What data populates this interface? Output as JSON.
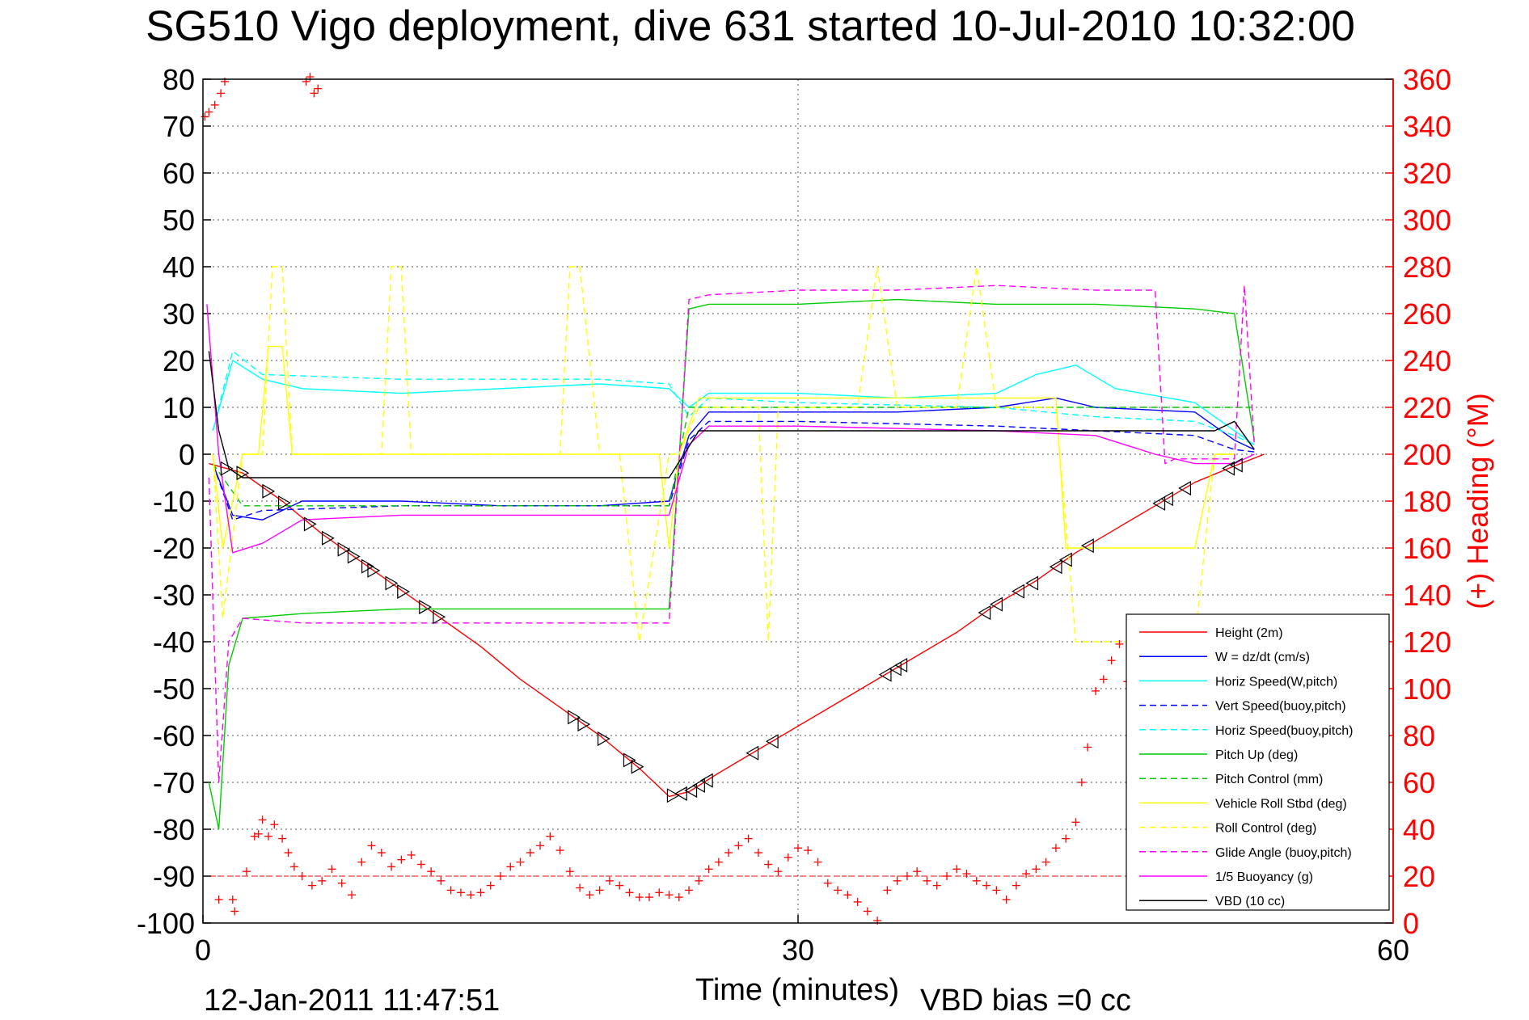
{
  "chart_data": {
    "type": "line",
    "title": "SG510 Vigo deployment, dive 631 started 10-Jul-2010 10:32:00",
    "xlabel": "Time (minutes)",
    "ylabel": "",
    "y2label": "(+) Heading (°M)",
    "xlim": [
      0,
      60
    ],
    "ylim": [
      -100,
      80
    ],
    "y2lim": [
      0,
      360
    ],
    "xticks": [
      0,
      30,
      60
    ],
    "yticks": [
      80,
      70,
      60,
      50,
      40,
      30,
      20,
      10,
      0,
      -10,
      -20,
      -30,
      -40,
      -50,
      -60,
      -70,
      -80,
      -90,
      -100
    ],
    "y2ticks": [
      360,
      340,
      320,
      300,
      280,
      260,
      240,
      220,
      200,
      180,
      160,
      140,
      120,
      100,
      80,
      60,
      40,
      20,
      0
    ],
    "grid": true,
    "legend_position": "bottom-right",
    "footer_left": "12-Jan-2011 11:47:51",
    "footer_right": "VBD bias =0 cc",
    "series": [
      {
        "name": "Height (2m)",
        "color": "#ff0000",
        "dash": "solid",
        "x": [
          0.3,
          2,
          4,
          6,
          8,
          10,
          12,
          14,
          16,
          18,
          20,
          22,
          23.5,
          24.5,
          26,
          28,
          30,
          32,
          34,
          36,
          38,
          40,
          42,
          44,
          46,
          48,
          50,
          52,
          53.5
        ],
        "y": [
          -2,
          -4,
          -10,
          -17,
          -23,
          -29,
          -35,
          -41,
          -48,
          -54,
          -60,
          -67,
          -73,
          -72,
          -68,
          -63,
          -58,
          -53,
          -48,
          -43,
          -38,
          -32,
          -27,
          -21,
          -16,
          -11,
          -6,
          -2.5,
          0
        ]
      },
      {
        "name": "W = dz/dt (cm/s)",
        "color": "#0000ff",
        "dash": "solid",
        "x": [
          0.5,
          1.5,
          3,
          5,
          10,
          15,
          20,
          23.5,
          24.5,
          25.5,
          30,
          35,
          40,
          43,
          45,
          50,
          52,
          53
        ],
        "y": [
          -2,
          -13,
          -14,
          -10,
          -10,
          -11,
          -11,
          -10,
          4,
          9,
          9,
          9,
          10,
          12,
          10,
          9,
          3,
          1
        ]
      },
      {
        "name": "Horiz Speed(W,pitch)",
        "color": "#00ffff",
        "dash": "solid",
        "x": [
          0.5,
          1.5,
          3,
          5,
          10,
          15,
          20,
          23.5,
          24.5,
          25.5,
          30,
          35,
          40,
          42,
          44,
          46,
          50,
          52,
          53
        ],
        "y": [
          5,
          20,
          16,
          14,
          13,
          14,
          15,
          14,
          10,
          13,
          13,
          12,
          13,
          17,
          19,
          14,
          11,
          5,
          2
        ]
      },
      {
        "name": "Vert Speed(buoy,pitch)",
        "color": "#0000ff",
        "dash": "dashed",
        "x": [
          0.5,
          1.5,
          3,
          10,
          20,
          23.5,
          24.5,
          25.5,
          30,
          40,
          45,
          50,
          52,
          53
        ],
        "y": [
          -2,
          -14,
          -12,
          -11,
          -11,
          -11,
          3,
          7,
          7,
          6,
          5,
          4,
          1,
          0.5
        ]
      },
      {
        "name": "Horiz Speed(buoy,pitch)",
        "color": "#00ffff",
        "dash": "dashed",
        "x": [
          0.5,
          1.5,
          3,
          10,
          20,
          23.5,
          24.5,
          25.5,
          30,
          40,
          45,
          50,
          52,
          53
        ],
        "y": [
          5,
          22,
          17,
          16,
          16,
          15,
          8,
          12,
          11,
          10,
          8,
          7,
          4,
          2
        ]
      },
      {
        "name": "Pitch Up (deg)",
        "color": "#00cc00",
        "dash": "solid",
        "x": [
          0.3,
          0.8,
          1.3,
          2,
          5,
          10,
          15,
          20,
          23.5,
          24.5,
          25.5,
          30,
          35,
          40,
          45,
          50,
          52,
          53
        ],
        "y": [
          -70,
          -80,
          -45,
          -35,
          -34,
          -33,
          -33,
          -33,
          -33,
          31,
          32,
          32,
          33,
          32,
          32,
          31,
          30,
          3
        ]
      },
      {
        "name": "Pitch Control (mm)",
        "color": "#00cc00",
        "dash": "dashed",
        "x": [
          0.5,
          2,
          10,
          23.5,
          24.5,
          30,
          40,
          50,
          53
        ],
        "y": [
          -2,
          -11,
          -11,
          -11,
          10,
          10,
          10,
          10,
          10
        ]
      },
      {
        "name": "Vehicle Roll Stbd (deg)",
        "color": "#ffff00",
        "dash": "solid",
        "x": [
          0.5,
          1,
          2,
          2.8,
          3.3,
          4,
          4.5,
          5,
          10,
          10.5,
          12,
          12.5,
          20,
          23,
          23.5,
          24,
          25,
          30,
          34,
          35,
          36,
          39,
          40,
          41,
          42,
          43,
          43.5,
          44,
          45,
          46,
          47,
          48,
          49,
          50,
          51,
          52
        ],
        "y": [
          0,
          -20,
          0,
          0,
          23,
          23,
          0,
          0,
          0,
          0,
          0,
          0,
          0,
          0,
          -20,
          0,
          12,
          12,
          12,
          12,
          12,
          12,
          12,
          12,
          12,
          12,
          -20,
          -20,
          -20,
          -20,
          -20,
          -20,
          -20,
          -20,
          0,
          0
        ]
      },
      {
        "name": "Roll Control (deg)",
        "color": "#ffff00",
        "dash": "dashed",
        "x": [
          0.5,
          1,
          2,
          3,
          3.5,
          4,
          4.5,
          5,
          9,
          9.5,
          10,
          10.5,
          18,
          18.5,
          19,
          20,
          21,
          22,
          23.5,
          24,
          25,
          28,
          28.5,
          29,
          33,
          34,
          35,
          38,
          39,
          40,
          41,
          43,
          44,
          45,
          48,
          49,
          50,
          51,
          52
        ],
        "y": [
          0,
          -35,
          0,
          0,
          40,
          40,
          0,
          0,
          0,
          40,
          40,
          0,
          0,
          40,
          40,
          0,
          0,
          -40,
          0,
          0,
          10,
          10,
          -40,
          10,
          10,
          40,
          10,
          10,
          40,
          10,
          10,
          10,
          -40,
          -40,
          -40,
          -40,
          -40,
          0,
          0
        ]
      },
      {
        "name": "Glide Angle (buoy,pitch)",
        "color": "#ff00ff",
        "dash": "dashed",
        "x": [
          0.3,
          0.8,
          1.3,
          2,
          5,
          10,
          15,
          20,
          23.5,
          24.5,
          25.5,
          30,
          35,
          40,
          45,
          48,
          48.5,
          49,
          52,
          52.5,
          53
        ],
        "y": [
          -5,
          -70,
          -40,
          -35,
          -36,
          -36,
          -36,
          -36,
          -36,
          33,
          34,
          35,
          35,
          36,
          35,
          35,
          -2,
          -1,
          -1,
          36,
          2
        ]
      },
      {
        "name": "1/5 Buoyancy (g)",
        "color": "#ff00ff",
        "dash": "solid",
        "x": [
          0.2,
          0.8,
          1.5,
          3,
          5,
          10,
          15,
          20,
          23.5,
          24.5,
          25.5,
          30,
          40,
          45,
          48,
          50,
          52,
          53
        ],
        "y": [
          32,
          0,
          -21,
          -19,
          -14,
          -13,
          -13,
          -13,
          -13,
          2,
          6,
          6,
          5,
          4,
          0,
          -2,
          -2,
          0
        ]
      },
      {
        "name": "VBD (10 cc)",
        "color": "#000000",
        "dash": "solid",
        "x": [
          0.3,
          0.8,
          1.3,
          2,
          10,
          20,
          23.5,
          25,
          30,
          40,
          48,
          51,
          52,
          53
        ],
        "y": [
          22,
          5,
          -3,
          -5,
          -5,
          -5,
          -5,
          5,
          5,
          5,
          5,
          5,
          7,
          1
        ]
      }
    ],
    "heading_series": {
      "name": "(+) Heading (°M)",
      "color": "#ff0000",
      "marker": "+",
      "axis": "right",
      "x": [
        0.1,
        0.3,
        0.6,
        0.9,
        1.1,
        1.6,
        5.2,
        5.4,
        5.6,
        5.8,
        0.8,
        1.5,
        2.2,
        2.6,
        2.8,
        3.0,
        3.3,
        3.6,
        4.0,
        4.3,
        4.6,
        5.0,
        5.5,
        6.0,
        6.5,
        7.0,
        7.5,
        8.0,
        8.5,
        9.0,
        9.5,
        10.0,
        10.5,
        11.0,
        11.5,
        12.0,
        12.5,
        13.0,
        13.5,
        14.0,
        14.5,
        15.0,
        15.5,
        16.0,
        16.5,
        17.0,
        17.5,
        18.0,
        18.5,
        19.0,
        19.5,
        20.0,
        20.5,
        21.0,
        21.5,
        22.0,
        22.5,
        23.0,
        23.5,
        24.0,
        24.5,
        25.0,
        25.5,
        26.0,
        26.5,
        27.0,
        27.5,
        28.0,
        28.5,
        29.0,
        29.5,
        30.0,
        30.5,
        31.0,
        31.5,
        32.0,
        32.5,
        33.0,
        33.5,
        34.0,
        34.5,
        35.0,
        35.5,
        36.0,
        36.5,
        37.0,
        37.5,
        38.0,
        38.5,
        39.0,
        39.5,
        40.0,
        40.5,
        41.0,
        41.5,
        42.0,
        42.5,
        43.0,
        43.5,
        44.0,
        44.3,
        44.6,
        45.0,
        45.4,
        45.8,
        46.2,
        46.6,
        47.0
      ],
      "y": [
        344,
        346,
        349,
        354,
        359,
        5,
        359,
        361,
        354,
        356,
        10,
        10,
        22,
        37,
        38,
        44,
        37,
        42,
        36,
        30,
        24,
        20,
        16,
        18,
        23,
        17,
        12,
        26,
        33,
        30,
        24,
        27,
        29,
        25,
        22,
        18,
        14,
        13,
        12,
        13,
        16,
        20,
        24,
        26,
        30,
        33,
        37,
        31,
        22,
        15,
        12,
        14,
        18,
        16,
        13,
        11,
        11,
        13,
        12,
        11,
        14,
        18,
        23,
        26,
        30,
        33,
        36,
        30,
        25,
        22,
        28,
        32,
        31,
        26,
        17,
        14,
        12,
        9,
        5,
        1,
        14,
        18,
        20,
        22,
        18,
        16,
        20,
        23,
        21,
        18,
        16,
        14,
        10,
        16,
        21,
        23,
        26,
        32,
        36,
        43,
        60,
        75,
        99,
        104,
        112,
        119,
        103,
        109
      ]
    }
  }
}
